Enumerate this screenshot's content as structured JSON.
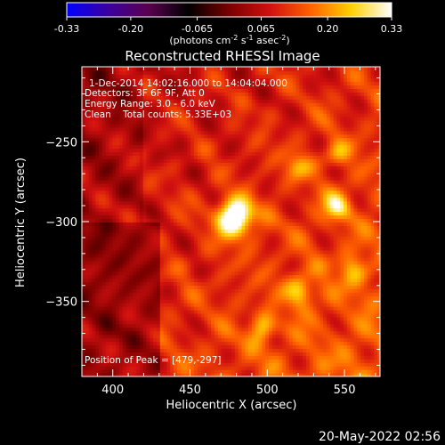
{
  "colorbar": {
    "ticks": [
      "-0.33",
      "-0.20",
      "-0.065",
      "0.065",
      "0.20",
      "0.33"
    ],
    "tick_values": [
      -0.33,
      -0.2,
      -0.065,
      0.065,
      0.2,
      0.33
    ],
    "range": [
      -0.33,
      0.33
    ],
    "units_prefix": "(photons cm",
    "units_sup1": "-2",
    "units_mid": " s",
    "units_sup2": "-1",
    "units_mid2": " asec",
    "units_sup3": "-2",
    "units_suffix": ")",
    "colormap_stops": [
      "#0000ff",
      "#3a00a0",
      "#5a0050",
      "#000000",
      "#7a0000",
      "#d01010",
      "#ff6000",
      "#ffd000",
      "#ffffff"
    ]
  },
  "chart_data": {
    "type": "heatmap",
    "title": "Reconstructed RHESSI Image",
    "xlabel": "Heliocentric X (arcsec)",
    "ylabel": "Heliocentric Y (arcsec)",
    "xlim": [
      380,
      573
    ],
    "ylim": [
      -397,
      -203
    ],
    "x_ticks": [
      400,
      450,
      500,
      550
    ],
    "y_ticks": [
      -250,
      -300,
      -350
    ],
    "x_tick_labels": [
      "400",
      "450",
      "500",
      "550"
    ],
    "y_tick_labels": [
      "−250",
      "−300",
      "−350"
    ],
    "grid": false,
    "annotations": [
      "1-Dec-2014 14:02:16.000 to 14:04:04.000",
      "Detectors: 3F 6F 9F, Att 0",
      "Energy Range: 3.0 - 6.0 keV",
      "Clean    Total counts: 5.33E+03"
    ],
    "peak_label": "Position of Peak = [479,-297]",
    "peak": {
      "x": 479,
      "y": -297,
      "value": 0.33
    },
    "secondary_sources": [
      {
        "x": 545,
        "y": -290,
        "value": 0.16
      },
      {
        "x": 521,
        "y": -343,
        "value": 0.15
      },
      {
        "x": 497,
        "y": -367,
        "value": 0.12
      },
      {
        "x": 520,
        "y": -265,
        "value": 0.1
      },
      {
        "x": 545,
        "y": -257,
        "value": 0.09
      },
      {
        "x": 555,
        "y": -330,
        "value": 0.11
      }
    ]
  },
  "footer": {
    "date": "20-May-2022 02:56"
  }
}
